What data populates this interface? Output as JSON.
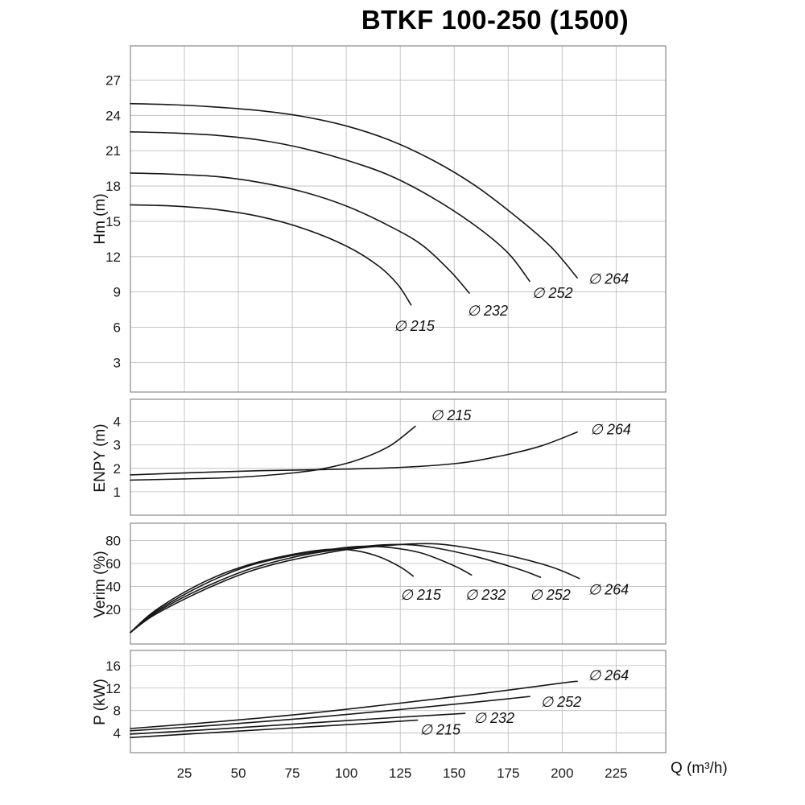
{
  "title": "BTKF 100-250 (1500)",
  "x_axis": {
    "label": "Q (m³/h)",
    "min": 0,
    "max": 248,
    "ticks": [
      25,
      50,
      75,
      100,
      125,
      150,
      175,
      200,
      225
    ]
  },
  "chart_data": [
    {
      "type": "line",
      "ylabel": "Hm (m)",
      "ylim": [
        0.5,
        29.9
      ],
      "yticks": [
        3,
        6,
        9,
        12,
        15,
        18,
        21,
        24,
        27
      ],
      "grid": true,
      "series": [
        {
          "name": "∅ 264",
          "label_pos": [
            212,
            9.7
          ],
          "points": [
            [
              0,
              25.0
            ],
            [
              20,
              24.9
            ],
            [
              40,
              24.7
            ],
            [
              60,
              24.4
            ],
            [
              80,
              23.9
            ],
            [
              100,
              23.1
            ],
            [
              120,
              21.9
            ],
            [
              140,
              20.2
            ],
            [
              160,
              18.0
            ],
            [
              180,
              15.2
            ],
            [
              195,
              12.8
            ],
            [
              207,
              10.2
            ]
          ]
        },
        {
          "name": "∅ 252",
          "label_pos": [
            186,
            8.5
          ],
          "points": [
            [
              0,
              22.6
            ],
            [
              20,
              22.5
            ],
            [
              40,
              22.3
            ],
            [
              60,
              21.9
            ],
            [
              80,
              21.2
            ],
            [
              100,
              20.2
            ],
            [
              120,
              18.9
            ],
            [
              140,
              17.0
            ],
            [
              160,
              14.6
            ],
            [
              175,
              12.3
            ],
            [
              185,
              9.9
            ]
          ]
        },
        {
          "name": "∅ 232",
          "label_pos": [
            156,
            7.0
          ],
          "points": [
            [
              0,
              19.1
            ],
            [
              20,
              19.0
            ],
            [
              40,
              18.8
            ],
            [
              60,
              18.3
            ],
            [
              80,
              17.5
            ],
            [
              100,
              16.3
            ],
            [
              120,
              14.6
            ],
            [
              135,
              13.0
            ],
            [
              148,
              10.8
            ],
            [
              157,
              8.9
            ]
          ]
        },
        {
          "name": "∅ 215",
          "label_pos": [
            122,
            5.7
          ],
          "points": [
            [
              0,
              16.4
            ],
            [
              20,
              16.3
            ],
            [
              40,
              16.0
            ],
            [
              60,
              15.4
            ],
            [
              80,
              14.4
            ],
            [
              100,
              12.9
            ],
            [
              115,
              11.2
            ],
            [
              124,
              9.6
            ],
            [
              130,
              7.9
            ]
          ]
        }
      ]
    },
    {
      "type": "line",
      "ylabel": "ENPY (m)",
      "ylim": [
        0,
        4.95
      ],
      "yticks": [
        1,
        2,
        3,
        4
      ],
      "grid": true,
      "series": [
        {
          "name": "∅ 215",
          "label_pos": [
            139,
            4.05
          ],
          "points": [
            [
              0,
              1.5
            ],
            [
              25,
              1.55
            ],
            [
              50,
              1.62
            ],
            [
              75,
              1.8
            ],
            [
              90,
              2.0
            ],
            [
              105,
              2.35
            ],
            [
              120,
              2.95
            ],
            [
              132,
              3.8
            ]
          ]
        },
        {
          "name": "∅ 264",
          "label_pos": [
            213,
            3.45
          ],
          "points": [
            [
              0,
              1.72
            ],
            [
              30,
              1.82
            ],
            [
              60,
              1.9
            ],
            [
              90,
              1.95
            ],
            [
              120,
              2.02
            ],
            [
              150,
              2.2
            ],
            [
              170,
              2.5
            ],
            [
              190,
              2.95
            ],
            [
              207,
              3.55
            ]
          ]
        }
      ]
    },
    {
      "type": "line",
      "ylabel": "Verim (%)",
      "ylim": [
        -10,
        95
      ],
      "yticks": [
        20,
        40,
        60,
        80
      ],
      "grid": true,
      "series": [
        {
          "name": "∅ 215",
          "label_pos": [
            125,
            28.5
          ],
          "points": [
            [
              0,
              0
            ],
            [
              10,
              17
            ],
            [
              25,
              35
            ],
            [
              40,
              49
            ],
            [
              55,
              59
            ],
            [
              70,
              66
            ],
            [
              85,
              71
            ],
            [
              95,
              72.5
            ],
            [
              105,
              71
            ],
            [
              115,
              66
            ],
            [
              125,
              57
            ],
            [
              131,
              49
            ]
          ]
        },
        {
          "name": "∅ 232",
          "label_pos": [
            155,
            28.5
          ],
          "points": [
            [
              0,
              0
            ],
            [
              10,
              16
            ],
            [
              25,
              33
            ],
            [
              40,
              47
            ],
            [
              55,
              58
            ],
            [
              70,
              65
            ],
            [
              85,
              70
            ],
            [
              100,
              74
            ],
            [
              110,
              75
            ],
            [
              122,
              73.5
            ],
            [
              135,
              69
            ],
            [
              150,
              58
            ],
            [
              158,
              50
            ]
          ]
        },
        {
          "name": "∅ 252",
          "label_pos": [
            185,
            28.5
          ],
          "points": [
            [
              0,
              0
            ],
            [
              10,
              15
            ],
            [
              25,
              31
            ],
            [
              40,
              44
            ],
            [
              55,
              55
            ],
            [
              70,
              63
            ],
            [
              85,
              69
            ],
            [
              100,
              73
            ],
            [
              115,
              76
            ],
            [
              127,
              76.5
            ],
            [
              140,
              74
            ],
            [
              160,
              66
            ],
            [
              180,
              55
            ],
            [
              190,
              48
            ]
          ]
        },
        {
          "name": "∅ 264",
          "label_pos": [
            212,
            33
          ],
          "points": [
            [
              0,
              0
            ],
            [
              10,
              14
            ],
            [
              25,
              29
            ],
            [
              40,
              42
            ],
            [
              55,
              53
            ],
            [
              70,
              61
            ],
            [
              85,
              67
            ],
            [
              100,
              72
            ],
            [
              115,
              75
            ],
            [
              130,
              77
            ],
            [
              142,
              77
            ],
            [
              155,
              74
            ],
            [
              175,
              67
            ],
            [
              195,
              57
            ],
            [
              208,
              47
            ]
          ]
        }
      ]
    },
    {
      "type": "line",
      "ylabel": "P (kW)",
      "ylim": [
        0.5,
        18.7
      ],
      "yticks": [
        4,
        8,
        12,
        16
      ],
      "grid": true,
      "series": [
        {
          "name": "∅ 264",
          "label_pos": [
            212,
            13.4
          ],
          "points": [
            [
              0,
              4.8
            ],
            [
              40,
              6.0
            ],
            [
              80,
              7.4
            ],
            [
              120,
              9.1
            ],
            [
              160,
              10.9
            ],
            [
              200,
              12.9
            ],
            [
              207,
              13.2
            ]
          ]
        },
        {
          "name": "∅ 252",
          "label_pos": [
            190,
            8.7
          ],
          "points": [
            [
              0,
              4.4
            ],
            [
              40,
              5.4
            ],
            [
              80,
              6.6
            ],
            [
              120,
              8.0
            ],
            [
              160,
              9.5
            ],
            [
              185,
              10.5
            ]
          ]
        },
        {
          "name": "∅ 232",
          "label_pos": [
            159,
            5.8
          ],
          "points": [
            [
              0,
              3.8
            ],
            [
              40,
              4.7
            ],
            [
              80,
              5.7
            ],
            [
              120,
              6.7
            ],
            [
              155,
              7.5
            ]
          ]
        },
        {
          "name": "∅ 215",
          "label_pos": [
            134,
            3.75
          ],
          "points": [
            [
              0,
              3.2
            ],
            [
              35,
              4.0
            ],
            [
              70,
              4.8
            ],
            [
              105,
              5.6
            ],
            [
              133,
              6.3
            ]
          ]
        }
      ]
    }
  ]
}
